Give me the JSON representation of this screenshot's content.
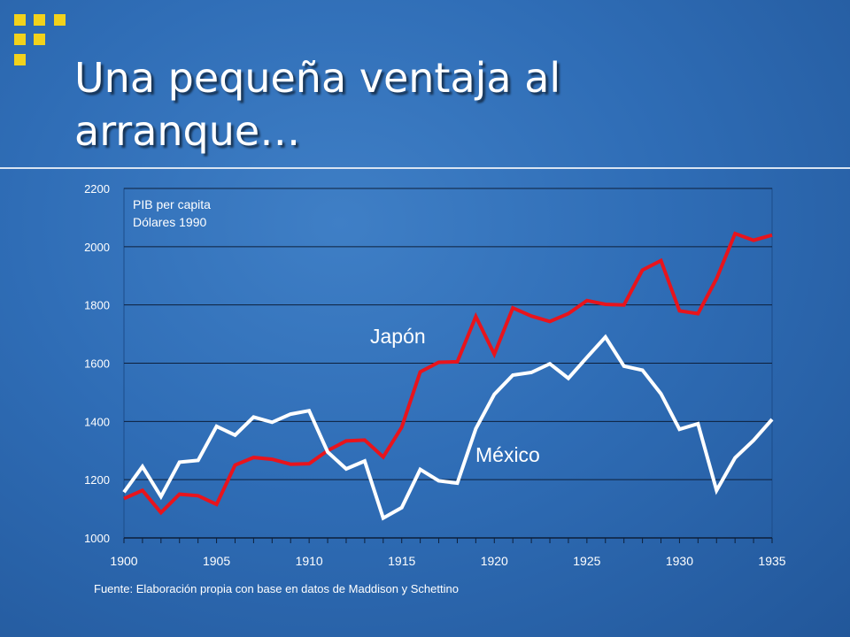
{
  "slide": {
    "title": "Una pequeña ventaja al arranque…",
    "source": "Fuente: Elaboración propia con base en datos de Maddison y Schettino",
    "accent_color": "#f2d21c"
  },
  "chart_data": {
    "type": "line",
    "annotation_lines": [
      "PIB per capita",
      "Dólares 1990"
    ],
    "xlabel": "",
    "ylabel": "",
    "xlim": [
      1900,
      1935
    ],
    "ylim": [
      1000,
      2200
    ],
    "x_ticks": [
      1900,
      1905,
      1910,
      1915,
      1920,
      1925,
      1930,
      1935
    ],
    "y_ticks": [
      1000,
      1200,
      1400,
      1600,
      1800,
      2000,
      2200
    ],
    "grid": true,
    "x": [
      1900,
      1901,
      1902,
      1903,
      1904,
      1905,
      1906,
      1907,
      1908,
      1909,
      1910,
      1911,
      1912,
      1913,
      1914,
      1915,
      1916,
      1917,
      1918,
      1919,
      1920,
      1921,
      1922,
      1923,
      1924,
      1925,
      1926,
      1927,
      1928,
      1929,
      1930,
      1931,
      1932,
      1933,
      1934,
      1935
    ],
    "series": [
      {
        "name": "Japón",
        "color": "#e8141c",
        "values": [
          1135,
          1163,
          1087,
          1150,
          1145,
          1115,
          1250,
          1276,
          1270,
          1253,
          1255,
          1300,
          1333,
          1336,
          1278,
          1380,
          1570,
          1603,
          1605,
          1760,
          1631,
          1790,
          1762,
          1743,
          1770,
          1815,
          1802,
          1800,
          1920,
          1952,
          1780,
          1770,
          1890,
          2045,
          2022,
          2040
        ]
      },
      {
        "name": "México",
        "color": "#ffffff",
        "values": [
          1157,
          1245,
          1142,
          1260,
          1266,
          1383,
          1353,
          1415,
          1397,
          1425,
          1437,
          1295,
          1237,
          1264,
          1068,
          1104,
          1235,
          1196,
          1188,
          1375,
          1493,
          1559,
          1568,
          1598,
          1548,
          1620,
          1690,
          1590,
          1576,
          1495,
          1373,
          1392,
          1163,
          1275,
          1335,
          1407
        ]
      }
    ]
  }
}
